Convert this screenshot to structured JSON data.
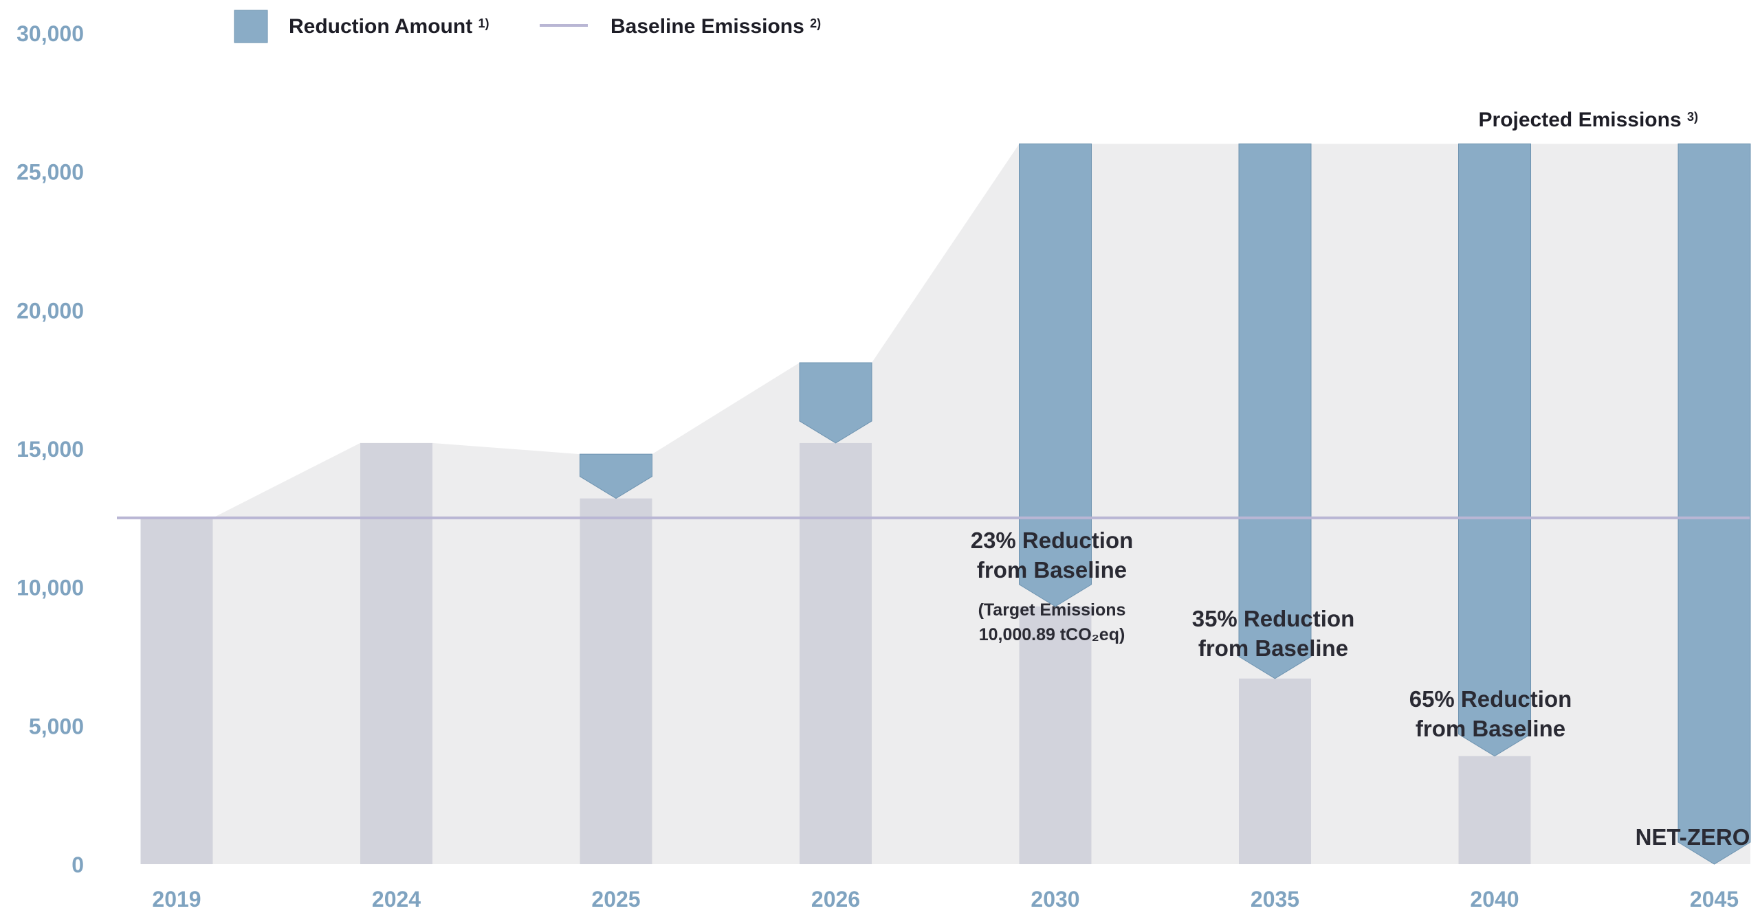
{
  "chart_data": {
    "type": "bar",
    "categories": [
      "2019",
      "2024",
      "2025",
      "2026",
      "2030",
      "2035",
      "2040",
      "2045"
    ],
    "ylim": [
      0,
      30000
    ],
    "yticks": [
      0,
      5000,
      10000,
      15000,
      20000,
      25000,
      30000
    ],
    "ytick_labels": [
      "0",
      "5,000",
      "10,000",
      "15,000",
      "20,000",
      "25,000",
      "30,000"
    ],
    "grid": false,
    "legend_position": "top-left",
    "legend": [
      {
        "label": "Reduction Amount",
        "sup": "1)",
        "color": "#8aacc6"
      },
      {
        "label": "Baseline Emissions",
        "sup": "2)",
        "color": "#b9b6d4"
      }
    ],
    "baseline": {
      "name": "Baseline Emissions",
      "value": 12500
    },
    "series": [
      {
        "name": "Emissions",
        "color": "#d2d3dc",
        "values": [
          12500,
          15200,
          13200,
          15200,
          9300,
          6700,
          3900,
          0
        ]
      },
      {
        "name": "Reduction Amount",
        "color": "#8aacc6",
        "values": [
          0,
          0,
          1600,
          2900,
          16700,
          19300,
          22100,
          26000
        ]
      },
      {
        "name": "Projected Emissions",
        "color": "#ededee",
        "values": [
          12500,
          15200,
          14800,
          18100,
          26000,
          26000,
          26000,
          26000
        ]
      }
    ],
    "projected_label": {
      "text": "Projected Emissions",
      "sup": "3)"
    },
    "annotations": [
      {
        "category": "2030",
        "lines": [
          "23% Reduction",
          "from Baseline"
        ],
        "note_lines": [
          "(Target Emissions",
          "10,000.89 tCO₂eq)"
        ]
      },
      {
        "category": "2035",
        "lines": [
          "35% Reduction",
          "from Baseline"
        ]
      },
      {
        "category": "2040",
        "lines": [
          "65% Reduction",
          "from Baseline"
        ]
      },
      {
        "category": "2045",
        "lines": [
          "NET-ZERO"
        ]
      }
    ]
  }
}
